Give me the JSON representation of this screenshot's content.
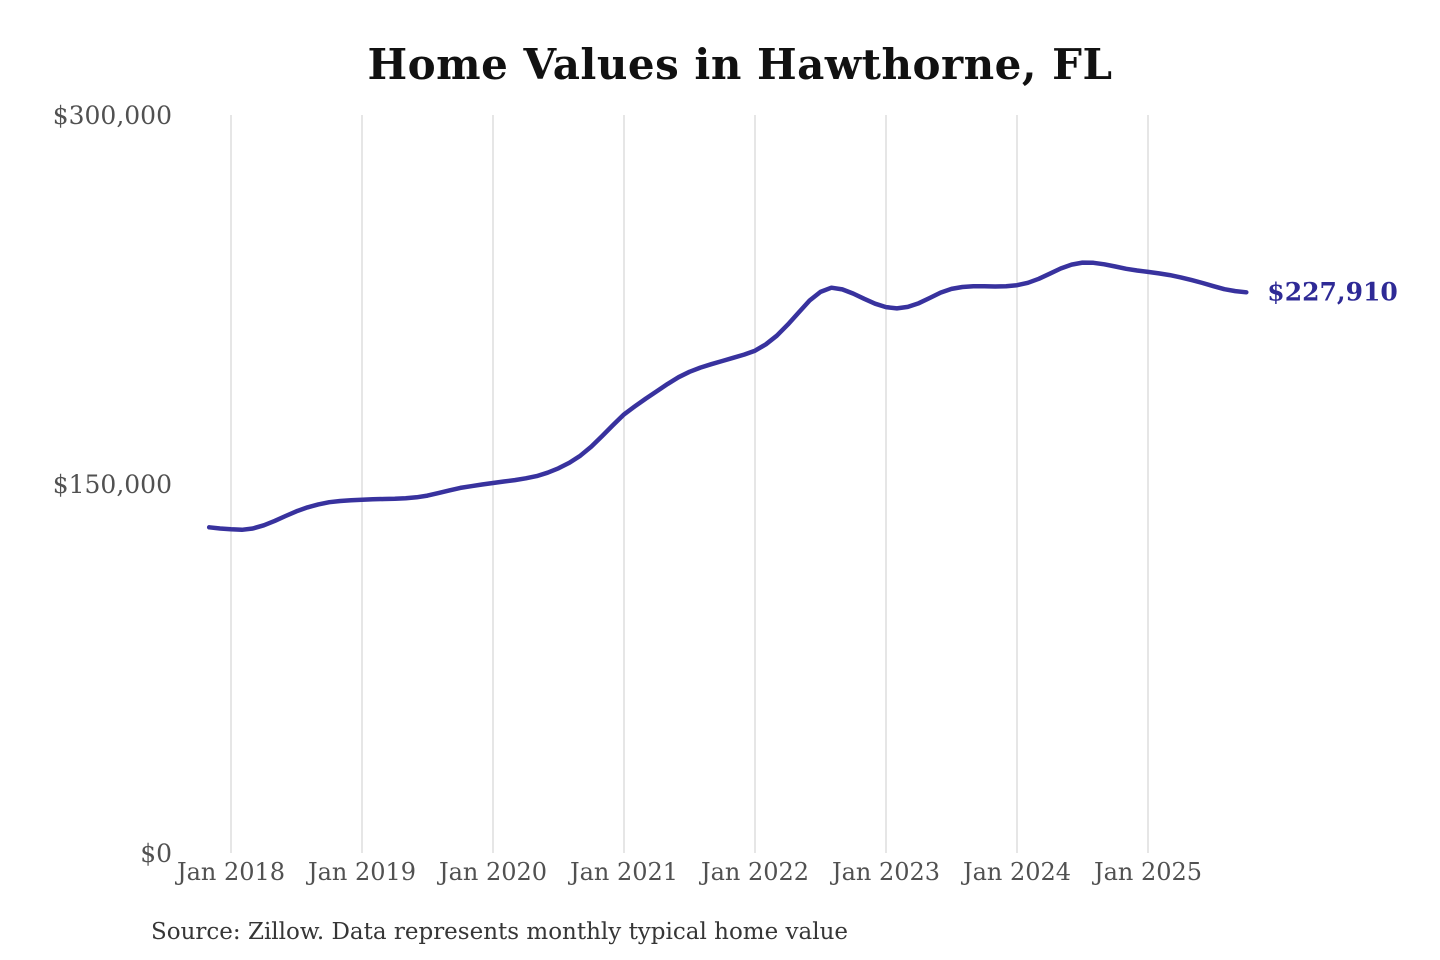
{
  "chart_data": {
    "type": "line",
    "title": "Home Values in Hawthorne, FL",
    "source_note": "Source: Zillow. Data represents monthly typical home value",
    "xlabel": "",
    "ylabel": "",
    "ylim": [
      0,
      300000
    ],
    "grid": "vertical-only",
    "legend": "none",
    "x_ticks": [
      "Jan 2018",
      "Jan 2019",
      "Jan 2020",
      "Jan 2021",
      "Jan 2022",
      "Jan 2023",
      "Jan 2024",
      "Jan 2025"
    ],
    "y_ticks": [
      {
        "value": 0,
        "label": "$0"
      },
      {
        "value": 150000,
        "label": "$150,000"
      },
      {
        "value": 300000,
        "label": "$300,000"
      }
    ],
    "colors": {
      "line": "#38329e",
      "end_label": "#2e2a96",
      "grid": "#cccccc",
      "axis_text": "#515151",
      "title_text": "#111111",
      "source_text": "#363636"
    },
    "series": [
      {
        "name": "Monthly typical home value",
        "frequency": "monthly",
        "start_month": "2017-11",
        "end_month": "2025-10",
        "end_value": 227910,
        "end_label": "$227,910",
        "values": [
          132400,
          131900,
          131600,
          131400,
          131900,
          133200,
          135000,
          137000,
          138900,
          140500,
          141700,
          142600,
          143100,
          143400,
          143600,
          143800,
          143900,
          144000,
          144200,
          144600,
          145300,
          146300,
          147400,
          148400,
          149100,
          149800,
          150400,
          151000,
          151600,
          152300,
          153200,
          154600,
          156400,
          158600,
          161500,
          165200,
          169500,
          174000,
          178300,
          181600,
          184700,
          187700,
          190700,
          193400,
          195600,
          197300,
          198700,
          200000,
          201300,
          202600,
          204200,
          206800,
          210300,
          214800,
          219700,
          224600,
          228100,
          229800,
          229100,
          227400,
          225300,
          223300,
          221900,
          221400,
          222000,
          223500,
          225600,
          227800,
          229300,
          230100,
          230400,
          230400,
          230300,
          230400,
          230800,
          231800,
          233400,
          235500,
          237600,
          239200,
          240000,
          239900,
          239300,
          238400,
          237500,
          236800,
          236200,
          235600,
          234900,
          234000,
          232900,
          231700,
          230400,
          229200,
          228400,
          227910
        ]
      }
    ]
  }
}
